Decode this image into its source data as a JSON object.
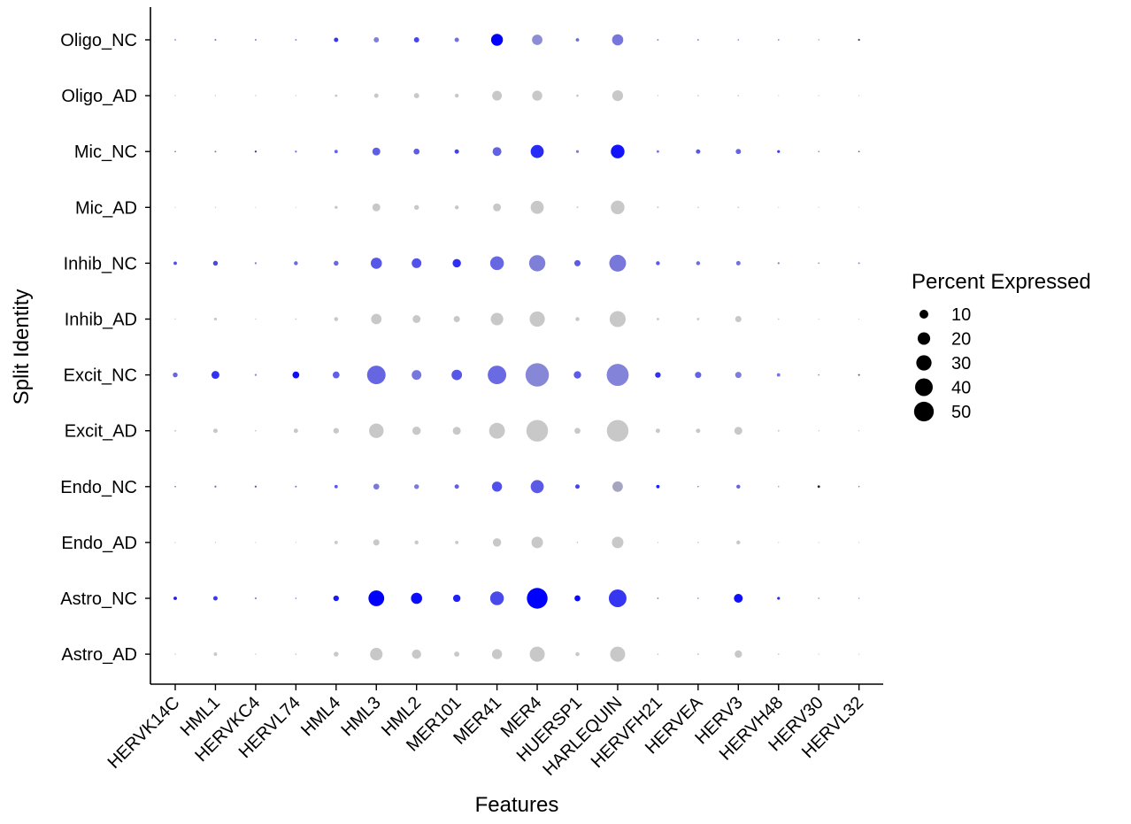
{
  "chart_data": {
    "type": "dotplot",
    "title": "",
    "xlabel": "Features",
    "ylabel": "Split Identity",
    "features": [
      "HERVK14C",
      "HML1",
      "HERVKC4",
      "HERVL74",
      "HML4",
      "HML3",
      "HML2",
      "MER101",
      "MER41",
      "MER4",
      "HUERSP1",
      "HARLEQUIN",
      "HERVFH21",
      "HERVEA",
      "HERV3",
      "HERVH48",
      "HERV30",
      "HERVL32"
    ],
    "identities": [
      "Oligo_NC",
      "Oligo_AD",
      "Mic_NC",
      "Mic_AD",
      "Inhib_NC",
      "Inhib_AD",
      "Excit_NC",
      "Excit_AD",
      "Endo_NC",
      "Endo_AD",
      "Astro_NC",
      "Astro_AD"
    ],
    "percent_expressed": [
      [
        0.3,
        0.4,
        0.4,
        0.4,
        2.5,
        3.5,
        3.5,
        2.5,
        18,
        14,
        1.5,
        16,
        0.4,
        0.4,
        0.3,
        0.3,
        0.2,
        0.5
      ],
      [
        0.2,
        0.2,
        0.2,
        0.2,
        0.8,
        2.5,
        3.5,
        2,
        12,
        13,
        0.7,
        15,
        0.2,
        0.3,
        0.3,
        0.1,
        0.1,
        0.1
      ],
      [
        0.3,
        0.4,
        0.5,
        0.5,
        1.5,
        8,
        4.5,
        2.5,
        10,
        22,
        1,
        24,
        0.8,
        2.5,
        3.5,
        1,
        0.3,
        0.3
      ],
      [
        0.1,
        0.2,
        0.1,
        0.1,
        1.2,
        8,
        3,
        2,
        8,
        22,
        0.4,
        24,
        0.4,
        0.3,
        0.3,
        0.1,
        0.1,
        0.1
      ],
      [
        1.5,
        3,
        0.5,
        2,
        3,
        16,
        12,
        9,
        24,
        34,
        5,
        36,
        2,
        2,
        2.5,
        0.5,
        0.3,
        0.4
      ],
      [
        0.2,
        1,
        0.2,
        0.3,
        2,
        14,
        8,
        5,
        20,
        30,
        2,
        33,
        0.8,
        0.8,
        5,
        0.3,
        0.1,
        0.1
      ],
      [
        3,
        8,
        0.5,
        6,
        6,
        44,
        12,
        14,
        44,
        70,
        7,
        62,
        4,
        5,
        5,
        1.5,
        0.3,
        0.4
      ],
      [
        0.4,
        2.5,
        0.3,
        2.5,
        4,
        27,
        9,
        8,
        32,
        60,
        4.5,
        60,
        2.5,
        2.5,
        8,
        0.4,
        0.2,
        0.2
      ],
      [
        0.3,
        0.5,
        0.5,
        0.4,
        1.5,
        4.5,
        3,
        2.5,
        13,
        22,
        2.5,
        14,
        1.5,
        0.3,
        2,
        0.2,
        0.8,
        0.2
      ],
      [
        0.2,
        0.2,
        0.1,
        0.1,
        1.5,
        5,
        2,
        1.5,
        9,
        17,
        0.3,
        17,
        0.2,
        0.3,
        2,
        0.1,
        0.1,
        0.1
      ],
      [
        1.5,
        2.5,
        0.5,
        0.3,
        4,
        32,
        16,
        7,
        24,
        55,
        4.5,
        40,
        0.4,
        0.3,
        10,
        1,
        0.3,
        0.2
      ],
      [
        0.2,
        1.5,
        0.2,
        0.3,
        3,
        20,
        11,
        3.5,
        13,
        29,
        2,
        29,
        0.3,
        0.4,
        7,
        0.3,
        0.1,
        0.1
      ]
    ],
    "dot_colors": [
      [
        "#7b7bdf",
        "#6e6ee8",
        "#8383d8",
        "#8a8ad3",
        "#3535f3",
        "#7f7fdc",
        "#4545ef",
        "#7070e2",
        "#0000ff",
        "#8d8dd6",
        "#6a6ae3",
        "#7676dd",
        "#9090d4",
        "#8f8fd2",
        "#8b8bd5",
        "#7c7cdb",
        "#9595cf",
        "#40406a"
      ],
      [
        "#c8c8c8",
        "#c8c8c8",
        "#c8c8c8",
        "#c8c8c8",
        "#c8c8c8",
        "#c8c8c8",
        "#c8c8c8",
        "#c8c8c8",
        "#c8c8c8",
        "#c8c8c8",
        "#c8c8c8",
        "#c8c8c8",
        "#c8c8c8",
        "#c8c8c8",
        "#c8c8c8",
        "#c8c8c8",
        "#c8c8c8",
        "#c8c8c8"
      ],
      [
        "#6f6fe0",
        "#7b7bdb",
        "#3b3b86",
        "#7070e0",
        "#6565e6",
        "#5e5ee6",
        "#5c5ce6",
        "#4040f0",
        "#6262e5",
        "#2a2af6",
        "#7a7ad9",
        "#1414fa",
        "#7575dd",
        "#5858e8",
        "#6464e4",
        "#3a3af2",
        "#8585d6",
        "#55557a"
      ],
      [
        "#c8c8c8",
        "#c8c8c8",
        "#c8c8c8",
        "#c8c8c8",
        "#c8c8c8",
        "#c8c8c8",
        "#c8c8c8",
        "#c8c8c8",
        "#c8c8c8",
        "#c8c8c8",
        "#c8c8c8",
        "#c8c8c8",
        "#c8c8c8",
        "#c8c8c8",
        "#c8c8c8",
        "#c8c8c8",
        "#c8c8c8",
        "#c8c8c8"
      ],
      [
        "#4f4fe9",
        "#4848ec",
        "#7c7cd9",
        "#6a6ae2",
        "#6868e2",
        "#5858e8",
        "#5252ea",
        "#2e2ef4",
        "#6767e2",
        "#7f7fd9",
        "#5b5be6",
        "#7878db",
        "#5a5ae7",
        "#6b6be2",
        "#7070df",
        "#8080d7",
        "#9393d0",
        "#8a8ad2"
      ],
      [
        "#c8c8c8",
        "#c8c8c8",
        "#c8c8c8",
        "#c8c8c8",
        "#c8c8c8",
        "#c8c8c8",
        "#c8c8c8",
        "#c8c8c8",
        "#c8c8c8",
        "#c8c8c8",
        "#c8c8c8",
        "#c8c8c8",
        "#c8c8c8",
        "#c8c8c8",
        "#c8c8c8",
        "#c8c8c8",
        "#c8c8c8",
        "#c8c8c8"
      ],
      [
        "#6666e3",
        "#3232f2",
        "#8787d5",
        "#0e0efb",
        "#6060e5",
        "#6666e3",
        "#7676dd",
        "#5656e8",
        "#6a6ae2",
        "#8787d7",
        "#5c5ce6",
        "#8383d9",
        "#3030f3",
        "#6262e5",
        "#7e7edb",
        "#7575dd",
        "#8c8cd3",
        "#55557c"
      ],
      [
        "#c8c8c8",
        "#c8c8c8",
        "#c8c8c8",
        "#c8c8c8",
        "#c8c8c8",
        "#c8c8c8",
        "#c8c8c8",
        "#c8c8c8",
        "#c8c8c8",
        "#c8c8c8",
        "#c8c8c8",
        "#c8c8c8",
        "#c8c8c8",
        "#c8c8c8",
        "#c8c8c8",
        "#c8c8c8",
        "#c8c8c8",
        "#c8c8c8"
      ],
      [
        "#6b6be3",
        "#6a6ae2",
        "#5a5aa8",
        "#7373dd",
        "#5a5ae7",
        "#7a7adb",
        "#7b7bdb",
        "#6060e5",
        "#5151ea",
        "#5a5ae7",
        "#4343ef",
        "#a5a5c0",
        "#1f1ff8",
        "#7c7cdb",
        "#6565e4",
        "#7474dd",
        "#20202a",
        "#5a5a7a"
      ],
      [
        "#c8c8c8",
        "#c8c8c8",
        "#c8c8c8",
        "#c8c8c8",
        "#c8c8c8",
        "#c8c8c8",
        "#c8c8c8",
        "#c8c8c8",
        "#c8c8c8",
        "#c8c8c8",
        "#c8c8c8",
        "#c8c8c8",
        "#c8c8c8",
        "#c8c8c8",
        "#c8c8c8",
        "#c8c8c8",
        "#c8c8c8",
        "#c8c8c8"
      ],
      [
        "#1a1af8",
        "#3a3af1",
        "#8a8ad5",
        "#9090d2",
        "#1818f9",
        "#0000ff",
        "#0c0cfc",
        "#2020f7",
        "#4a4aeb",
        "#0000ff",
        "#0808fd",
        "#3636f2",
        "#9292d2",
        "#9292d1",
        "#1010fb",
        "#2828f5",
        "#9494cf",
        "#8e8ed2"
      ],
      [
        "#c8c8c8",
        "#c8c8c8",
        "#c8c8c8",
        "#c8c8c8",
        "#c8c8c8",
        "#c8c8c8",
        "#c8c8c8",
        "#c8c8c8",
        "#c8c8c8",
        "#c8c8c8",
        "#c8c8c8",
        "#c8c8c8",
        "#c8c8c8",
        "#c8c8c8",
        "#c8c8c8",
        "#c8c8c8",
        "#c8c8c8",
        "#c8c8c8"
      ]
    ],
    "size_legend": {
      "title": "Percent Expressed",
      "values": [
        10,
        20,
        30,
        40,
        50
      ],
      "labels": [
        "10",
        "20",
        "30",
        "40",
        "50"
      ]
    },
    "size_scale_max": 70,
    "grid": false,
    "legend_position": "right"
  }
}
